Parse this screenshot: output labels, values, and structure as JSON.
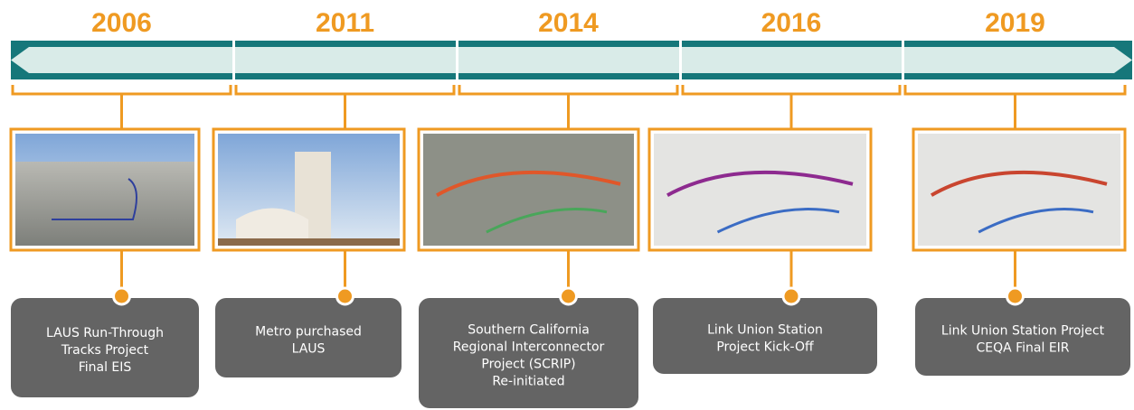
{
  "timeline": {
    "items": [
      {
        "year": "2006",
        "caption": [
          "LAUS Run-Through",
          "Tracks Project",
          "Final EIS"
        ]
      },
      {
        "year": "2011",
        "caption": [
          "Metro purchased",
          "LAUS"
        ]
      },
      {
        "year": "2014",
        "caption": [
          "Southern California",
          "Regional Interconnector",
          "Project (SCRIP)",
          "Re-initiated"
        ]
      },
      {
        "year": "2016",
        "caption": [
          "Link Union Station",
          "Project Kick-Off"
        ]
      },
      {
        "year": "2019",
        "caption": [
          "Link Union Station Project",
          "CEQA Final EIR"
        ]
      }
    ]
  }
}
